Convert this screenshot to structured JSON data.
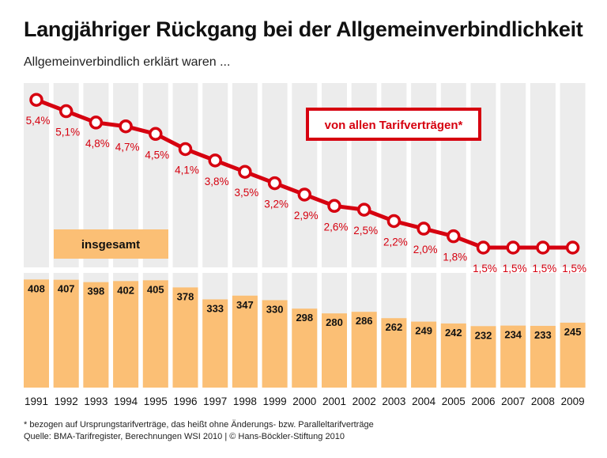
{
  "chart_data": {
    "type": "bar+line",
    "title": "Langjähriger Rückgang bei der Allgemeinverbindlichkeit",
    "subtitle": "Allgemeinverbindlich erklärt waren ...",
    "categories": [
      "1991",
      "1992",
      "1993",
      "1994",
      "1995",
      "1996",
      "1997",
      "1998",
      "1999",
      "2000",
      "2001",
      "2002",
      "2003",
      "2004",
      "2005",
      "2006",
      "2007",
      "2008",
      "2009"
    ],
    "series": [
      {
        "name": "insgesamt",
        "type": "bar",
        "color": "#fbbf75",
        "values": [
          408,
          407,
          398,
          402,
          405,
          378,
          333,
          347,
          330,
          298,
          280,
          286,
          262,
          249,
          242,
          232,
          234,
          233,
          245
        ],
        "labels": [
          "408",
          "407",
          "398",
          "402",
          "405",
          "378",
          "333",
          "347",
          "330",
          "298",
          "280",
          "286",
          "262",
          "249",
          "242",
          "232",
          "234",
          "233",
          "245"
        ]
      },
      {
        "name": "von allen Tarifverträgen*",
        "type": "line",
        "color": "#d6000f",
        "values": [
          5.4,
          5.1,
          4.8,
          4.7,
          4.5,
          4.1,
          3.8,
          3.5,
          3.2,
          2.9,
          2.6,
          2.5,
          2.2,
          2.0,
          1.8,
          1.5,
          1.5,
          1.5,
          1.5
        ],
        "labels": [
          "5,4%",
          "5,1%",
          "4,8%",
          "4,7%",
          "4,5%",
          "4,1%",
          "3,8%",
          "3,5%",
          "3,2%",
          "2,9%",
          "2,6%",
          "2,5%",
          "2,2%",
          "2,0%",
          "1,8%",
          "1,5%",
          "1,5%",
          "1,5%",
          "1,5%"
        ]
      }
    ],
    "grid": false,
    "column_background": "#ececec"
  },
  "footnotes": {
    "note": "* bezogen auf Ursprungstarifverträge, das heißt ohne Änderungs- bzw. Paralleltarifverträge",
    "source": "Quelle: BMA-Tarifregister, Berechnungen WSI 2010 | © Hans-Böckler-Stiftung 2010"
  }
}
